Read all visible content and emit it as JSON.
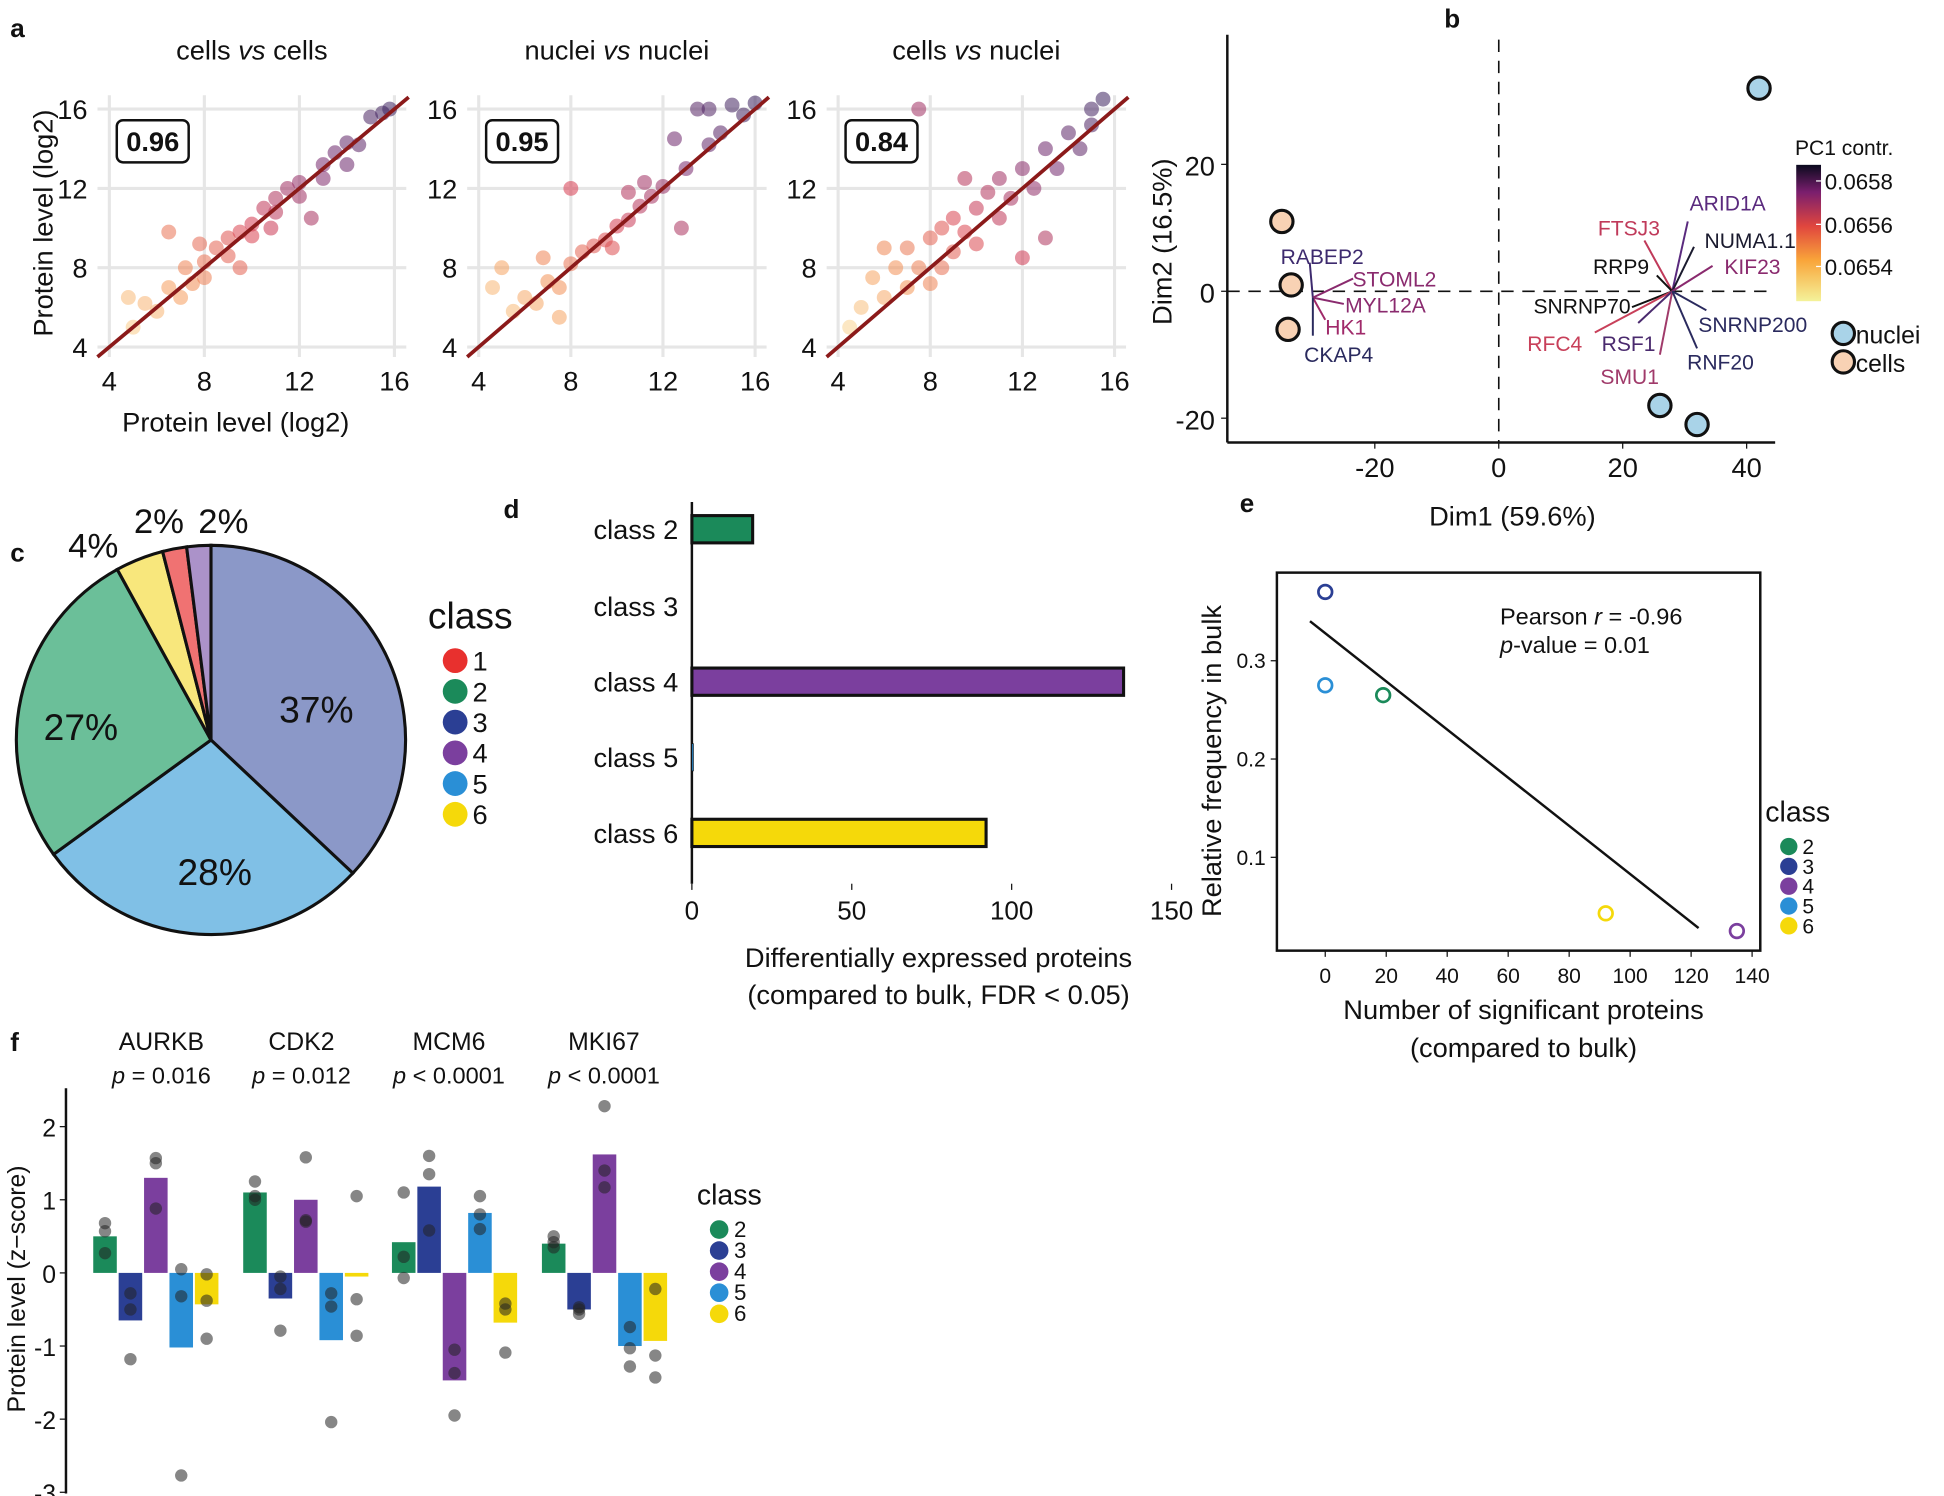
{
  "panel_labels": [
    "a",
    "b",
    "c",
    "d",
    "e",
    "f"
  ],
  "class_colors": {
    "1": "#e8302e",
    "2": "#1b8a5a",
    "3": "#2b3f94",
    "4": "#7b3f9e",
    "5": "#2a8fd6",
    "6": "#f5d90a"
  },
  "chart_data": [
    {
      "id": "a1",
      "type": "scatter",
      "title": "cells vs cells",
      "title_parts": [
        "cells ",
        "vs",
        " cells"
      ],
      "xlabel": "Protein level (log2)",
      "ylabel": "Protein level (log2)",
      "xlim": [
        3.5,
        16.5
      ],
      "ylim": [
        3.5,
        16.5
      ],
      "ticks": [
        "4",
        "8",
        "12",
        "16"
      ],
      "grid": true,
      "correlation": "0.96",
      "fit_line_color": "#8b1a1a",
      "points": [
        [
          5,
          5
        ],
        [
          5.5,
          6.2
        ],
        [
          6,
          5.8
        ],
        [
          6.5,
          7
        ],
        [
          7,
          6.5
        ],
        [
          7.2,
          8
        ],
        [
          7.5,
          7.2
        ],
        [
          8,
          8.3
        ],
        [
          8,
          7.5
        ],
        [
          8.5,
          9
        ],
        [
          9,
          8.6
        ],
        [
          9,
          9.5
        ],
        [
          9.5,
          9.8
        ],
        [
          10,
          10.2
        ],
        [
          10,
          9.6
        ],
        [
          10.5,
          11
        ],
        [
          11,
          10.8
        ],
        [
          11,
          11.5
        ],
        [
          11.5,
          12
        ],
        [
          12,
          12.3
        ],
        [
          12,
          11.6
        ],
        [
          12.5,
          10.5
        ],
        [
          13,
          13.2
        ],
        [
          13.5,
          13.8
        ],
        [
          14,
          14.3
        ],
        [
          14.5,
          14.2
        ],
        [
          15,
          15.6
        ],
        [
          15.5,
          15.8
        ],
        [
          15.8,
          16
        ],
        [
          6.5,
          9.8
        ],
        [
          9.5,
          8
        ],
        [
          7.8,
          9.2
        ],
        [
          10.8,
          10
        ],
        [
          4.8,
          6.5
        ],
        [
          13,
          12.5
        ],
        [
          14,
          13.2
        ]
      ]
    },
    {
      "id": "a2",
      "type": "scatter",
      "title": "nuclei vs nuclei",
      "title_parts": [
        "nuclei ",
        "vs",
        " nuclei"
      ],
      "xlim": [
        3.5,
        16.5
      ],
      "ylim": [
        3.5,
        16.5
      ],
      "ticks": [
        "4",
        "8",
        "12",
        "16"
      ],
      "grid": true,
      "correlation": "0.95",
      "fit_line_color": "#8b1a1a",
      "points": [
        [
          4.6,
          7
        ],
        [
          5,
          8
        ],
        [
          5.5,
          5.8
        ],
        [
          6,
          6.5
        ],
        [
          6.5,
          6.2
        ],
        [
          7,
          7.3
        ],
        [
          7.5,
          7
        ],
        [
          8,
          8.2
        ],
        [
          8,
          12
        ],
        [
          8.5,
          8.8
        ],
        [
          9,
          9.1
        ],
        [
          9.5,
          9.4
        ],
        [
          10,
          10.1
        ],
        [
          10.5,
          10.4
        ],
        [
          11,
          11.1
        ],
        [
          11.5,
          11.6
        ],
        [
          12,
          12.1
        ],
        [
          12.5,
          14.5
        ],
        [
          12.8,
          10
        ],
        [
          13,
          13
        ],
        [
          13.5,
          16
        ],
        [
          14,
          16
        ],
        [
          14,
          14.2
        ],
        [
          14.5,
          14.8
        ],
        [
          15,
          16.2
        ],
        [
          15.5,
          15.7
        ],
        [
          16,
          16.3
        ],
        [
          6.8,
          8.5
        ],
        [
          9.8,
          9
        ],
        [
          11.2,
          12.3
        ],
        [
          7.5,
          5.5
        ],
        [
          10.5,
          11.8
        ]
      ]
    },
    {
      "id": "a3",
      "type": "scatter",
      "title": "cells vs nuclei",
      "title_parts": [
        "cells ",
        "vs",
        " nuclei"
      ],
      "xlim": [
        3.5,
        16.5
      ],
      "ylim": [
        3.5,
        16.5
      ],
      "ticks": [
        "4",
        "8",
        "12",
        "16"
      ],
      "grid": true,
      "correlation": "0.84",
      "fit_line_color": "#8b1a1a",
      "points": [
        [
          4.5,
          5
        ],
        [
          5,
          6
        ],
        [
          5.5,
          7.5
        ],
        [
          6,
          6.5
        ],
        [
          6.5,
          8
        ],
        [
          7,
          7
        ],
        [
          7,
          9
        ],
        [
          7.5,
          16
        ],
        [
          7.5,
          8
        ],
        [
          8,
          9.5
        ],
        [
          8,
          7.2
        ],
        [
          8.5,
          10
        ],
        [
          8.5,
          8
        ],
        [
          9,
          10.5
        ],
        [
          9,
          8.8
        ],
        [
          9.5,
          9.8
        ],
        [
          10,
          11
        ],
        [
          10,
          9.2
        ],
        [
          10.5,
          11.8
        ],
        [
          11,
          10.5
        ],
        [
          11,
          12.5
        ],
        [
          11.5,
          11.5
        ],
        [
          12,
          8.5
        ],
        [
          12,
          13
        ],
        [
          12.5,
          12
        ],
        [
          13,
          9.5
        ],
        [
          13,
          14
        ],
        [
          13.5,
          13
        ],
        [
          14,
          14.8
        ],
        [
          14.5,
          14
        ],
        [
          15,
          16
        ],
        [
          15.5,
          16.5
        ],
        [
          15,
          15.2
        ],
        [
          9.5,
          12.5
        ],
        [
          6,
          9
        ]
      ]
    },
    {
      "id": "b",
      "type": "scatter",
      "subtype": "pca-biplot",
      "xlabel": "Dim1 (59.6%)",
      "ylabel": "Dim2 (16.5%)",
      "xlim": [
        -43,
        45
      ],
      "ylim": [
        -23,
        36
      ],
      "xticks": [
        "-20",
        "0",
        "20",
        "40"
      ],
      "yticks": [
        "20",
        "0",
        "-20"
      ],
      "colorbar": {
        "title": "PC1 contr.",
        "ticks": [
          "0.0658",
          "0.0656",
          "0.0654"
        ]
      },
      "legend": [
        {
          "label": "nuclei",
          "color": "#a9d3e8"
        },
        {
          "label": "cells",
          "color": "#f8d2b4"
        }
      ],
      "points": [
        {
          "group": "nuclei",
          "x": 42,
          "y": 32
        },
        {
          "group": "nuclei",
          "x": 26,
          "y": -18
        },
        {
          "group": "nuclei",
          "x": 32,
          "y": -21
        },
        {
          "group": "cells",
          "x": -35,
          "y": 11
        },
        {
          "group": "cells",
          "x": -33.5,
          "y": 1
        },
        {
          "group": "cells",
          "x": -34,
          "y": -6
        }
      ],
      "loadings_origin_left": [
        -30,
        -1
      ],
      "loadings_origin_right": [
        28,
        0
      ],
      "loadings": [
        {
          "label": "RABEP2",
          "side": "left",
          "x": -30.5,
          "y": 4.5,
          "color": "#3d2a6e"
        },
        {
          "label": "STOML2",
          "side": "left",
          "x": -23.5,
          "y": 2,
          "color": "#8a2a6e"
        },
        {
          "label": "MYL12A",
          "side": "left",
          "x": -25,
          "y": -2,
          "color": "#8a2a6e"
        },
        {
          "label": "HK1",
          "side": "left",
          "x": -28,
          "y": -4.5,
          "color": "#a02a6a"
        },
        {
          "label": "CKAP4",
          "side": "left",
          "x": -30,
          "y": -7,
          "color": "#2a2a5e"
        },
        {
          "label": "ARID1A",
          "side": "right",
          "x": 30.5,
          "y": 11,
          "color": "#5a2a7e"
        },
        {
          "label": "FTSJ3",
          "side": "right",
          "x": 23.5,
          "y": 8,
          "color": "#c03a5a"
        },
        {
          "label": "NUMA1.1",
          "side": "right",
          "x": 31.5,
          "y": 7,
          "color": "#1a1a2e"
        },
        {
          "label": "RRP9",
          "side": "right",
          "x": 25.5,
          "y": 2.5,
          "color": "#111111"
        },
        {
          "label": "KIF23",
          "side": "right",
          "x": 34.5,
          "y": 4,
          "color": "#8a2a6e"
        },
        {
          "label": "SNRNP70",
          "side": "right",
          "x": 21.5,
          "y": -2.5,
          "color": "#111111"
        },
        {
          "label": "SNRNP200",
          "side": "right",
          "x": 33.5,
          "y": -3,
          "color": "#2a2a5e"
        },
        {
          "label": "RFC4",
          "side": "right",
          "x": 15.5,
          "y": -6.5,
          "color": "#c8405a"
        },
        {
          "label": "RSF1",
          "side": "right",
          "x": 22.5,
          "y": -5,
          "color": "#4a2a6e"
        },
        {
          "label": "SMU1",
          "side": "right",
          "x": 26,
          "y": -10,
          "color": "#a03a6a"
        },
        {
          "label": "RNF20",
          "side": "right",
          "x": 32,
          "y": -9,
          "color": "#2a2a5e"
        }
      ]
    },
    {
      "id": "c",
      "type": "pie",
      "legend_title": "class",
      "legend": [
        "1",
        "2",
        "3",
        "4",
        "5",
        "6"
      ],
      "slices": [
        {
          "class": "3",
          "value": 37,
          "label": "37%",
          "color": "#8b98c8"
        },
        {
          "class": "5",
          "value": 28,
          "label": "28%",
          "color": "#80c0e6"
        },
        {
          "class": "2",
          "value": 27,
          "label": "27%",
          "color": "#6bbf99"
        },
        {
          "class": "6",
          "value": 4,
          "label": "4%",
          "color": "#f8e77c"
        },
        {
          "class": "1",
          "value": 2,
          "label": "2%",
          "color": "#f07272"
        },
        {
          "class": "4",
          "value": 2,
          "label": "2%",
          "color": "#ab92c9"
        }
      ]
    },
    {
      "id": "d",
      "type": "bar",
      "orientation": "horizontal",
      "categories": [
        "class 2",
        "class 3",
        "class 4",
        "class 5",
        "class 6"
      ],
      "classes": [
        "2",
        "3",
        "4",
        "5",
        "6"
      ],
      "values": [
        19,
        0,
        135,
        0.5,
        92
      ],
      "xlabel": "Differentially expressed proteins",
      "xlabel2": "(compared to bulk, FDR < 0.05)",
      "xlim": [
        0,
        150
      ],
      "xticks": [
        "0",
        "50",
        "100",
        "150"
      ]
    },
    {
      "id": "e",
      "type": "scatter",
      "xlabel": "Number of significant proteins",
      "xlabel2": "(compared to bulk)",
      "ylabel": "Relative frequency in bulk",
      "xlim": [
        -7,
        143
      ],
      "ylim": [
        0.01,
        0.395
      ],
      "xticks": [
        "0",
        "20",
        "40",
        "60",
        "80",
        "100",
        "120",
        "140"
      ],
      "yticks": [
        "0.1",
        "0.2",
        "0.3"
      ],
      "annotation": {
        "line1_prefix": "Pearson ",
        "line1_r": "r",
        "line1_value": " = -0.96",
        "line2_p": "p",
        "line2_value": "-value = 0.01"
      },
      "fit": {
        "intercept": 0.328,
        "slope": -0.00245
      },
      "legend_title": "class",
      "legend": [
        "2",
        "3",
        "4",
        "5",
        "6"
      ],
      "points": [
        {
          "class": "3",
          "x": 0,
          "y": 0.37
        },
        {
          "class": "5",
          "x": 0,
          "y": 0.275
        },
        {
          "class": "2",
          "x": 19,
          "y": 0.265
        },
        {
          "class": "6",
          "x": 92,
          "y": 0.043
        },
        {
          "class": "4",
          "x": 135,
          "y": 0.025
        }
      ]
    },
    {
      "id": "f",
      "type": "bar",
      "subtype": "grouped-bar-with-points",
      "ylabel": "Protein level (z−score)",
      "ylim": [
        -3,
        2.4
      ],
      "yticks": [
        "2",
        "1",
        "0",
        "-1",
        "-2",
        "-3"
      ],
      "legend_title": "class",
      "classes": [
        "2",
        "3",
        "4",
        "5",
        "6"
      ],
      "groups": [
        {
          "gene": "AURKB",
          "p_label": "p",
          "p_value": " = 0.016",
          "values": [
            0.5,
            -0.65,
            1.3,
            -1.02,
            -0.43
          ],
          "points": [
            [
              0.68,
              0.57,
              0.27
            ],
            [
              -0.28,
              -0.5,
              -1.18
            ],
            [
              1.57,
              1.5,
              0.88
            ],
            [
              0.05,
              -0.32,
              -2.77
            ],
            [
              -0.02,
              -0.38,
              -0.9
            ]
          ]
        },
        {
          "gene": "CDK2",
          "p_label": "p",
          "p_value": " = 0.012",
          "values": [
            1.1,
            -0.35,
            1.0,
            -0.92,
            -0.05
          ],
          "points": [
            [
              1.25,
              1.05,
              1.0
            ],
            [
              -0.05,
              -0.22,
              -0.79
            ],
            [
              1.58,
              0.72,
              0.7
            ],
            [
              -0.28,
              -0.46,
              -2.04
            ],
            [
              1.05,
              -0.36,
              -0.86
            ]
          ]
        },
        {
          "gene": "MCM6",
          "p_label": "p",
          "p_value": " < 0.0001",
          "values": [
            0.42,
            1.18,
            -1.47,
            0.82,
            -0.68
          ],
          "points": [
            [
              1.1,
              0.22,
              -0.07
            ],
            [
              1.6,
              1.35,
              0.58
            ],
            [
              -1.05,
              -1.37,
              -1.95
            ],
            [
              1.05,
              0.8,
              0.6
            ],
            [
              -0.42,
              -0.5,
              -1.09
            ]
          ]
        },
        {
          "gene": "MKI67",
          "p_label": "p",
          "p_value": " < 0.0001",
          "values": [
            0.4,
            -0.5,
            1.62,
            -1.0,
            -0.93
          ],
          "points": [
            [
              0.5,
              0.42,
              0.35
            ],
            [
              -0.47,
              -0.5,
              -0.56
            ],
            [
              2.28,
              1.4,
              1.17
            ],
            [
              -0.74,
              -1.03,
              -1.28
            ],
            [
              -0.22,
              -1.13,
              -1.43
            ]
          ]
        }
      ]
    }
  ]
}
